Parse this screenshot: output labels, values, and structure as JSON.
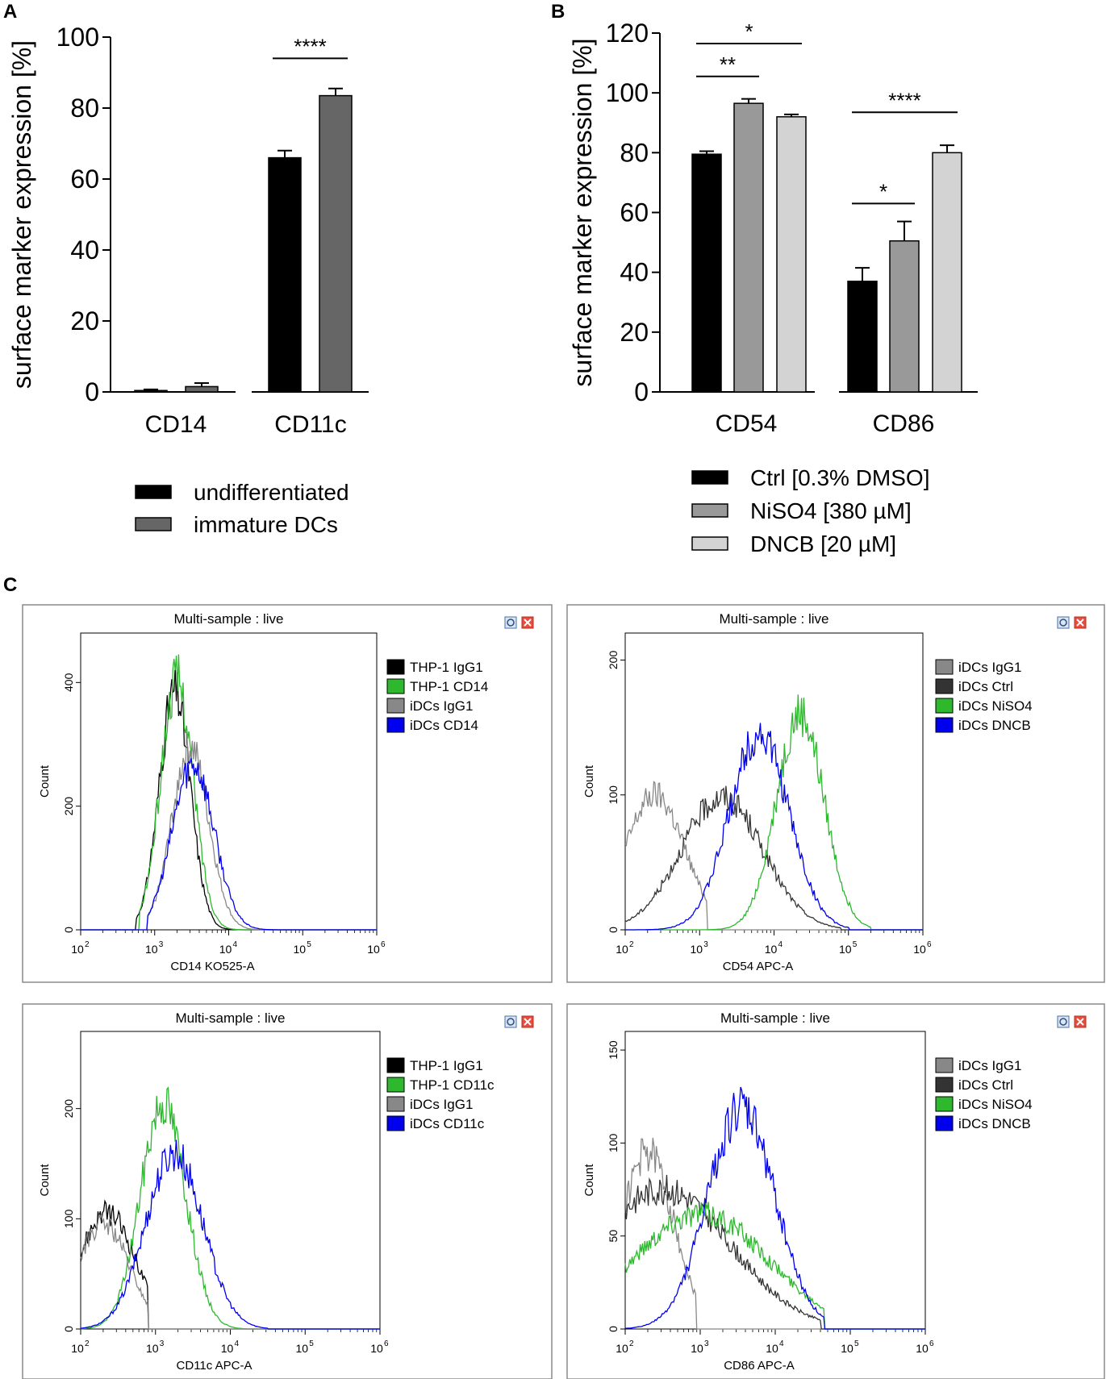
{
  "figure_labels": {
    "a": "A",
    "b": "B",
    "c": "C"
  },
  "chart_data": [
    {
      "id": "A",
      "type": "bar",
      "ylabel": "surface marker expression [%]",
      "ylim": [
        0,
        100
      ],
      "yticks": [
        0,
        20,
        40,
        60,
        80,
        100
      ],
      "categories": [
        "CD14",
        "CD11c"
      ],
      "series": [
        {
          "name": "undifferentiated",
          "color": "#000000",
          "values": [
            0.4,
            66
          ],
          "errors": [
            0.3,
            2
          ]
        },
        {
          "name": "immature DCs",
          "color": "#666666",
          "values": [
            1.5,
            83.5
          ],
          "errors": [
            1,
            2
          ]
        }
      ],
      "significance": [
        {
          "label": "****",
          "category": 1,
          "from": 0,
          "to": 1,
          "y": 94
        }
      ]
    },
    {
      "id": "B",
      "type": "bar",
      "ylabel": "surface marker expression [%]",
      "ylim": [
        0,
        120
      ],
      "yticks": [
        0,
        20,
        40,
        60,
        80,
        100,
        120
      ],
      "categories": [
        "CD54",
        "CD86"
      ],
      "series": [
        {
          "name": "Ctrl [0.3% DMSO]",
          "color": "#000000",
          "values": [
            79.5,
            37
          ],
          "errors": [
            1,
            4.5
          ]
        },
        {
          "name": "NiSO4 [380 µM]",
          "color": "#999999",
          "values": [
            96.5,
            50.5
          ],
          "errors": [
            1.5,
            6.5
          ]
        },
        {
          "name": "DNCB [20 µM]",
          "color": "#d3d3d3",
          "values": [
            92,
            80
          ],
          "errors": [
            0.8,
            2.5
          ]
        }
      ],
      "significance": [
        {
          "label": "*",
          "category": 0,
          "from": 0,
          "to": 2,
          "y": 116.5
        },
        {
          "label": "**",
          "category": 0,
          "from": 0,
          "to": 1,
          "y": 105.5
        },
        {
          "label": "****",
          "category": 1,
          "from": 0,
          "to": 2,
          "y": 93.5
        },
        {
          "label": "*",
          "category": 1,
          "from": 0,
          "to": 1,
          "y": 63
        }
      ]
    },
    {
      "id": "C1",
      "type": "histogram",
      "title": "Multi-sample : live",
      "xlabel": "CD14 KO525-A",
      "ylabel": "Count",
      "xscale": "log",
      "xlim": [
        100,
        1000000
      ],
      "ylim": [
        0,
        480
      ],
      "yticks": [
        0,
        200,
        400
      ],
      "series": [
        {
          "name": "THP-1 IgG1",
          "color": "#000000",
          "mu": 3.27,
          "sigma": 0.21,
          "peak": 385,
          "min": 2.75,
          "max": 4.3
        },
        {
          "name": "THP-1 CD14",
          "color": "#2db82d",
          "mu": 3.3,
          "sigma": 0.22,
          "peak": 405,
          "min": 2.8,
          "max": 4.3
        },
        {
          "name": "iDCs IgG1",
          "color": "#888888",
          "mu": 3.48,
          "sigma": 0.25,
          "peak": 295,
          "min": 2.9,
          "max": 4.6
        },
        {
          "name": "iDCs CD14",
          "color": "#0000ee",
          "mu": 3.52,
          "sigma": 0.28,
          "peak": 270,
          "min": 2.9,
          "max": 4.8
        }
      ]
    },
    {
      "id": "C2",
      "type": "histogram",
      "title": "Multi-sample : live",
      "xlabel": "CD54 APC-A",
      "ylabel": "Count",
      "xscale": "log",
      "xlim": [
        100,
        1000000
      ],
      "ylim": [
        0,
        220
      ],
      "yticks": [
        0,
        100,
        200
      ],
      "series": [
        {
          "name": "iDCs IgG1",
          "color": "#888888",
          "mu": 2.4,
          "sigma": 0.4,
          "peak": 100,
          "min": 2.0,
          "max": 3.1
        },
        {
          "name": "iDCs Ctrl",
          "color": "#333333",
          "mu": 3.3,
          "sigma": 0.55,
          "peak": 98,
          "min": 2.0,
          "max": 4.9
        },
        {
          "name": "iDCs NiSO4",
          "color": "#2db82d",
          "mu": 4.35,
          "sigma": 0.32,
          "peak": 160,
          "min": 2.4,
          "max": 5.3
        },
        {
          "name": "iDCs DNCB",
          "color": "#0000ee",
          "mu": 3.8,
          "sigma": 0.4,
          "peak": 145,
          "min": 2.0,
          "max": 5.0
        }
      ]
    },
    {
      "id": "C3",
      "type": "histogram",
      "title": "Multi-sample : live",
      "xlabel": "CD11c APC-A",
      "ylabel": "Count",
      "xscale": "log",
      "xlim": [
        100,
        1000000
      ],
      "ylim": [
        0,
        270
      ],
      "yticks": [
        0,
        100,
        200
      ],
      "series": [
        {
          "name": "THP-1 IgG1",
          "color": "#000000",
          "mu": 2.35,
          "sigma": 0.38,
          "peak": 105,
          "min": 2.0,
          "max": 2.9
        },
        {
          "name": "THP-1 CD11c",
          "color": "#2db82d",
          "mu": 3.1,
          "sigma": 0.3,
          "peak": 205,
          "min": 2.0,
          "max": 4.2
        },
        {
          "name": "iDCs IgG1",
          "color": "#888888",
          "mu": 2.3,
          "sigma": 0.35,
          "peak": 95,
          "min": 2.0,
          "max": 2.9
        },
        {
          "name": "iDCs CD11c",
          "color": "#0000ee",
          "mu": 3.25,
          "sigma": 0.38,
          "peak": 160,
          "min": 2.0,
          "max": 4.5
        }
      ]
    },
    {
      "id": "C4",
      "type": "histogram",
      "title": "Multi-sample : live",
      "xlabel": "CD86 APC-A",
      "ylabel": "Count",
      "xscale": "log",
      "xlim": [
        100,
        1000000
      ],
      "ylim": [
        0,
        160
      ],
      "yticks": [
        0,
        50,
        100,
        150
      ],
      "series": [
        {
          "name": "iDCs IgG1",
          "color": "#888888",
          "mu": 2.3,
          "sigma": 0.35,
          "peak": 95,
          "min": 2.0,
          "max": 2.95
        },
        {
          "name": "iDCs Ctrl",
          "color": "#333333",
          "mu": 2.5,
          "sigma": 0.9,
          "peak": 75,
          "min": 2.0,
          "max": 4.6
        },
        {
          "name": "iDCs NiSO4",
          "color": "#2db82d",
          "mu": 3.0,
          "sigma": 0.9,
          "peak": 62,
          "min": 2.0,
          "max": 4.65
        },
        {
          "name": "iDCs DNCB",
          "color": "#0000ee",
          "mu": 3.55,
          "sigma": 0.45,
          "peak": 118,
          "min": 2.0,
          "max": 4.65
        }
      ]
    }
  ]
}
